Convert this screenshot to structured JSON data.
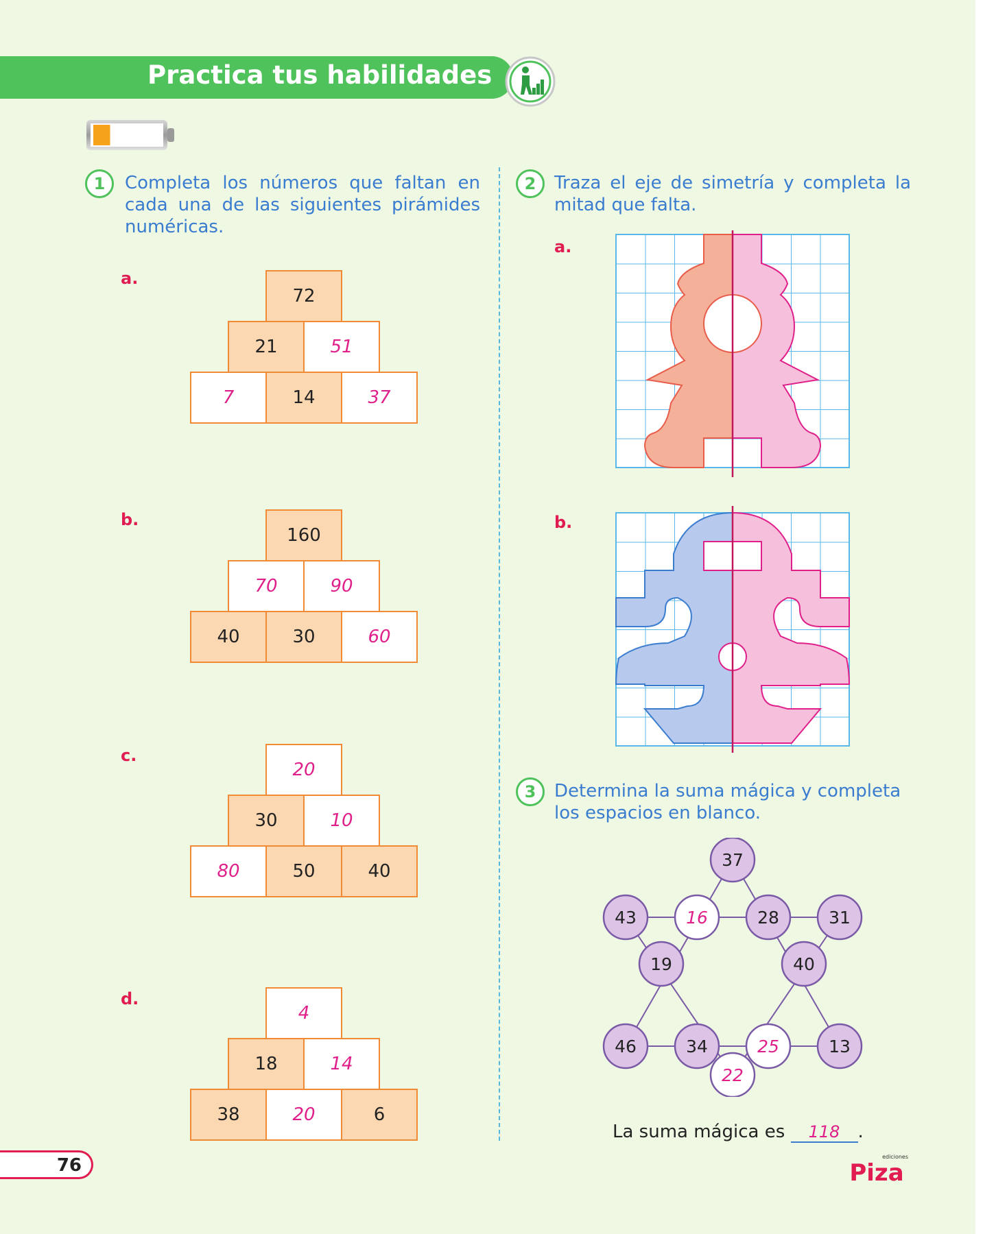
{
  "header": {
    "title": "Practica tus habilidades",
    "icon": "progress-person-icon"
  },
  "level_indicator": {
    "icon": "battery-icon",
    "level": 0.25
  },
  "ex1": {
    "num": "1",
    "text": "Completa los números que faltan en cada una de las siguientes pirámides numéricas.",
    "pyramids": [
      {
        "letter": "a.",
        "top": "72",
        "mid": [
          "21",
          "51"
        ],
        "bot": [
          "7",
          "14",
          "37"
        ]
      },
      {
        "letter": "b.",
        "top": "160",
        "mid": [
          "70",
          "90"
        ],
        "bot": [
          "40",
          "30",
          "60"
        ]
      },
      {
        "letter": "c.",
        "top": "20",
        "mid": [
          "30",
          "10"
        ],
        "bot": [
          "80",
          "50",
          "40"
        ]
      },
      {
        "letter": "d.",
        "top": "4",
        "mid": [
          "18",
          "14"
        ],
        "bot": [
          "38",
          "20",
          "6"
        ]
      }
    ]
  },
  "ex2": {
    "num": "2",
    "text": "Traza el eje de simetría y completa la mitad que falta.",
    "items": [
      {
        "letter": "a."
      },
      {
        "letter": "b."
      }
    ]
  },
  "ex3": {
    "num": "3",
    "text": "Determina la suma mágica y completa los espacios en blanco.",
    "nodes": [
      "37",
      "43",
      "16",
      "28",
      "31",
      "19",
      "40",
      "46",
      "34",
      "25",
      "13",
      "22"
    ],
    "answer_prefix": "La suma mágica es",
    "answer": "118",
    "answer_suffix": "."
  },
  "footer": {
    "page_number": "76",
    "logo_text": "Piza",
    "logo_subtext": "ediciones"
  },
  "colors": {
    "green": "#4fc25c",
    "blue_text": "#3a7ccf",
    "red_letter": "#e11c51",
    "answer_pink": "#e0208a",
    "cell_orange": "#fbd8b2",
    "node_purple": "#ddc3e6"
  }
}
